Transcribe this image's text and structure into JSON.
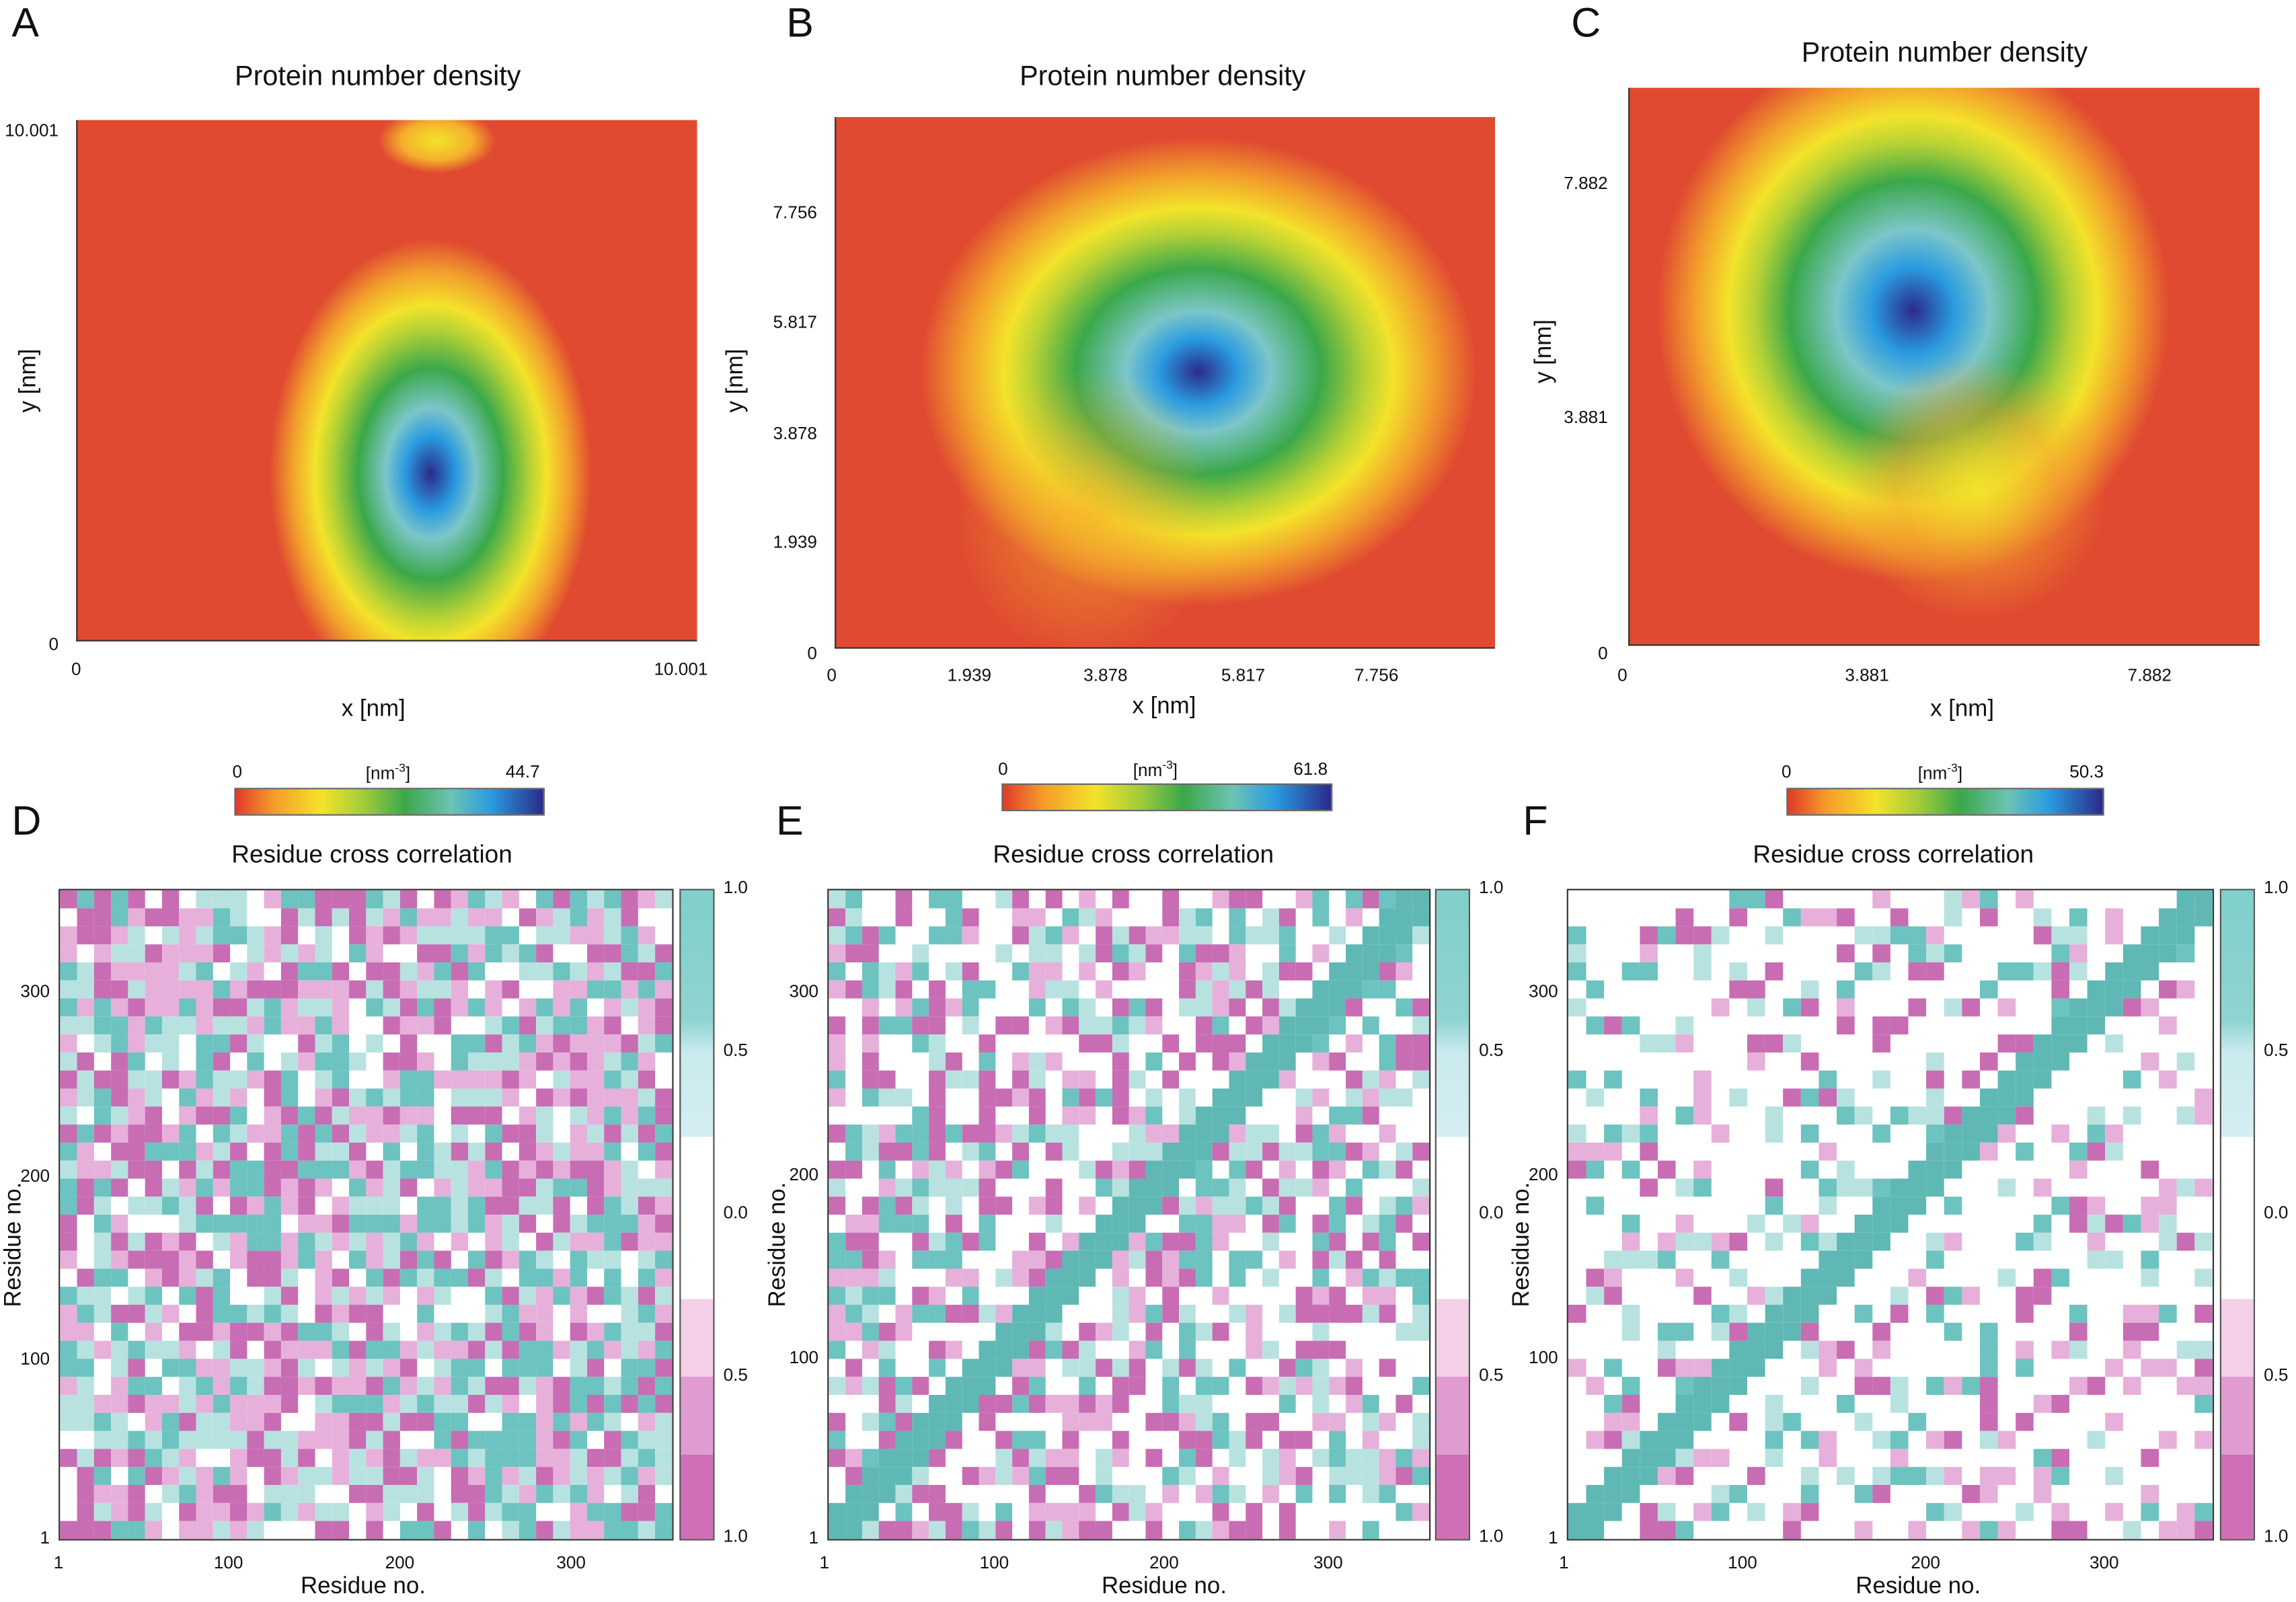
{
  "panels": {
    "A": {
      "letter": "A",
      "title": "Protein number density",
      "xlabel": "x [nm]",
      "ylabel": "y [nm]",
      "xticks": [
        "0",
        "10.001"
      ],
      "yticks": [
        "10.001",
        "0"
      ],
      "colorbar": {
        "min": "0",
        "unit": "[nm",
        "unit_exp": "-3",
        "unit_close": "]",
        "max": "44.7"
      }
    },
    "B": {
      "letter": "B",
      "title": "Protein number density",
      "xlabel": "x [nm]",
      "ylabel": "y [nm]",
      "xticks": [
        "0",
        "1.939",
        "3.878",
        "5.817",
        "7.756"
      ],
      "yticks": [
        "7.756",
        "5.817",
        "3.878",
        "1.939",
        "0"
      ],
      "colorbar": {
        "min": "0",
        "unit": "[nm",
        "unit_exp": "-3",
        "unit_close": "]",
        "max": "61.8"
      }
    },
    "C": {
      "letter": "C",
      "title": "Protein number density",
      "xlabel": "x [nm]",
      "ylabel": "y [nm]",
      "xticks": [
        "0",
        "3.881",
        "7.882"
      ],
      "yticks": [
        "7.882",
        "3.881",
        "0"
      ],
      "colorbar": {
        "min": "0",
        "unit": "[nm",
        "unit_exp": "-3",
        "unit_close": "]",
        "max": "50.3"
      }
    },
    "D": {
      "letter": "D",
      "title": "Residue cross correlation",
      "xlabel": "Residue no.",
      "ylabel": "Residue no.",
      "xticks": [
        "1",
        "100",
        "200",
        "300"
      ],
      "yticks": [
        "300",
        "200",
        "100",
        "1"
      ],
      "cbticks": [
        "1.0",
        "0.5",
        "0.0",
        "0.5",
        "1.0"
      ]
    },
    "E": {
      "letter": "E",
      "title": "Residue cross correlation",
      "xlabel": "Residue no.",
      "ylabel": "Residue no.",
      "xticks": [
        "1",
        "100",
        "200",
        "300"
      ],
      "yticks": [
        "300",
        "200",
        "100",
        "1"
      ],
      "cbticks": [
        "1.0",
        "0.5",
        "0.0",
        "0.5",
        "1.0"
      ]
    },
    "F": {
      "letter": "F",
      "title": "Residue cross correlation",
      "xlabel": "Residue no.",
      "ylabel": "Residue no.",
      "xticks": [
        "1",
        "100",
        "200",
        "300"
      ],
      "yticks": [
        "300",
        "200",
        "100",
        "1"
      ],
      "cbticks": [
        "1.0",
        "0.5",
        "0.0",
        "0.5",
        "1.0"
      ]
    }
  },
  "chart_data": [
    {
      "panel": "A",
      "type": "heatmap",
      "title": "Protein number density",
      "xlabel": "x [nm]",
      "ylabel": "y [nm]",
      "xlim": [
        0,
        10.001
      ],
      "ylim": [
        0,
        10.001
      ],
      "colorbar_range": [
        0,
        44.7
      ],
      "colormap": [
        "#e03a28",
        "#f3e32a",
        "#3aa84a",
        "#2a9be0",
        "#2b2a8a"
      ]
    },
    {
      "panel": "B",
      "type": "heatmap",
      "title": "Protein number density",
      "xlabel": "x [nm]",
      "ylabel": "y [nm]",
      "xlim": [
        0,
        8.7
      ],
      "ylim": [
        0,
        8.7
      ],
      "colorbar_range": [
        0,
        61.8
      ]
    },
    {
      "panel": "C",
      "type": "heatmap",
      "title": "Protein number density",
      "xlabel": "x [nm]",
      "ylabel": "y [nm]",
      "xlim": [
        0,
        8.7
      ],
      "ylim": [
        0,
        8.7
      ],
      "colorbar_range": [
        0,
        50.3
      ]
    },
    {
      "panel": "D",
      "type": "heatmap",
      "title": "Residue cross correlation",
      "xlabel": "Residue no.",
      "ylabel": "Residue no.",
      "xlim": [
        1,
        360
      ],
      "ylim": [
        1,
        360
      ],
      "colorbar_range": [
        -1,
        1
      ],
      "colors": {
        "positive": "#6cc3bf",
        "negative": "#c86cb4"
      }
    },
    {
      "panel": "E",
      "type": "heatmap",
      "title": "Residue cross correlation",
      "xlabel": "Residue no.",
      "ylabel": "Residue no.",
      "xlim": [
        1,
        360
      ],
      "ylim": [
        1,
        360
      ],
      "colorbar_range": [
        -1,
        1
      ]
    },
    {
      "panel": "F",
      "type": "heatmap",
      "title": "Residue cross correlation",
      "xlabel": "Residue no.",
      "ylabel": "Residue no.",
      "xlim": [
        1,
        360
      ],
      "ylim": [
        1,
        360
      ],
      "colorbar_range": [
        -1,
        1
      ]
    }
  ]
}
